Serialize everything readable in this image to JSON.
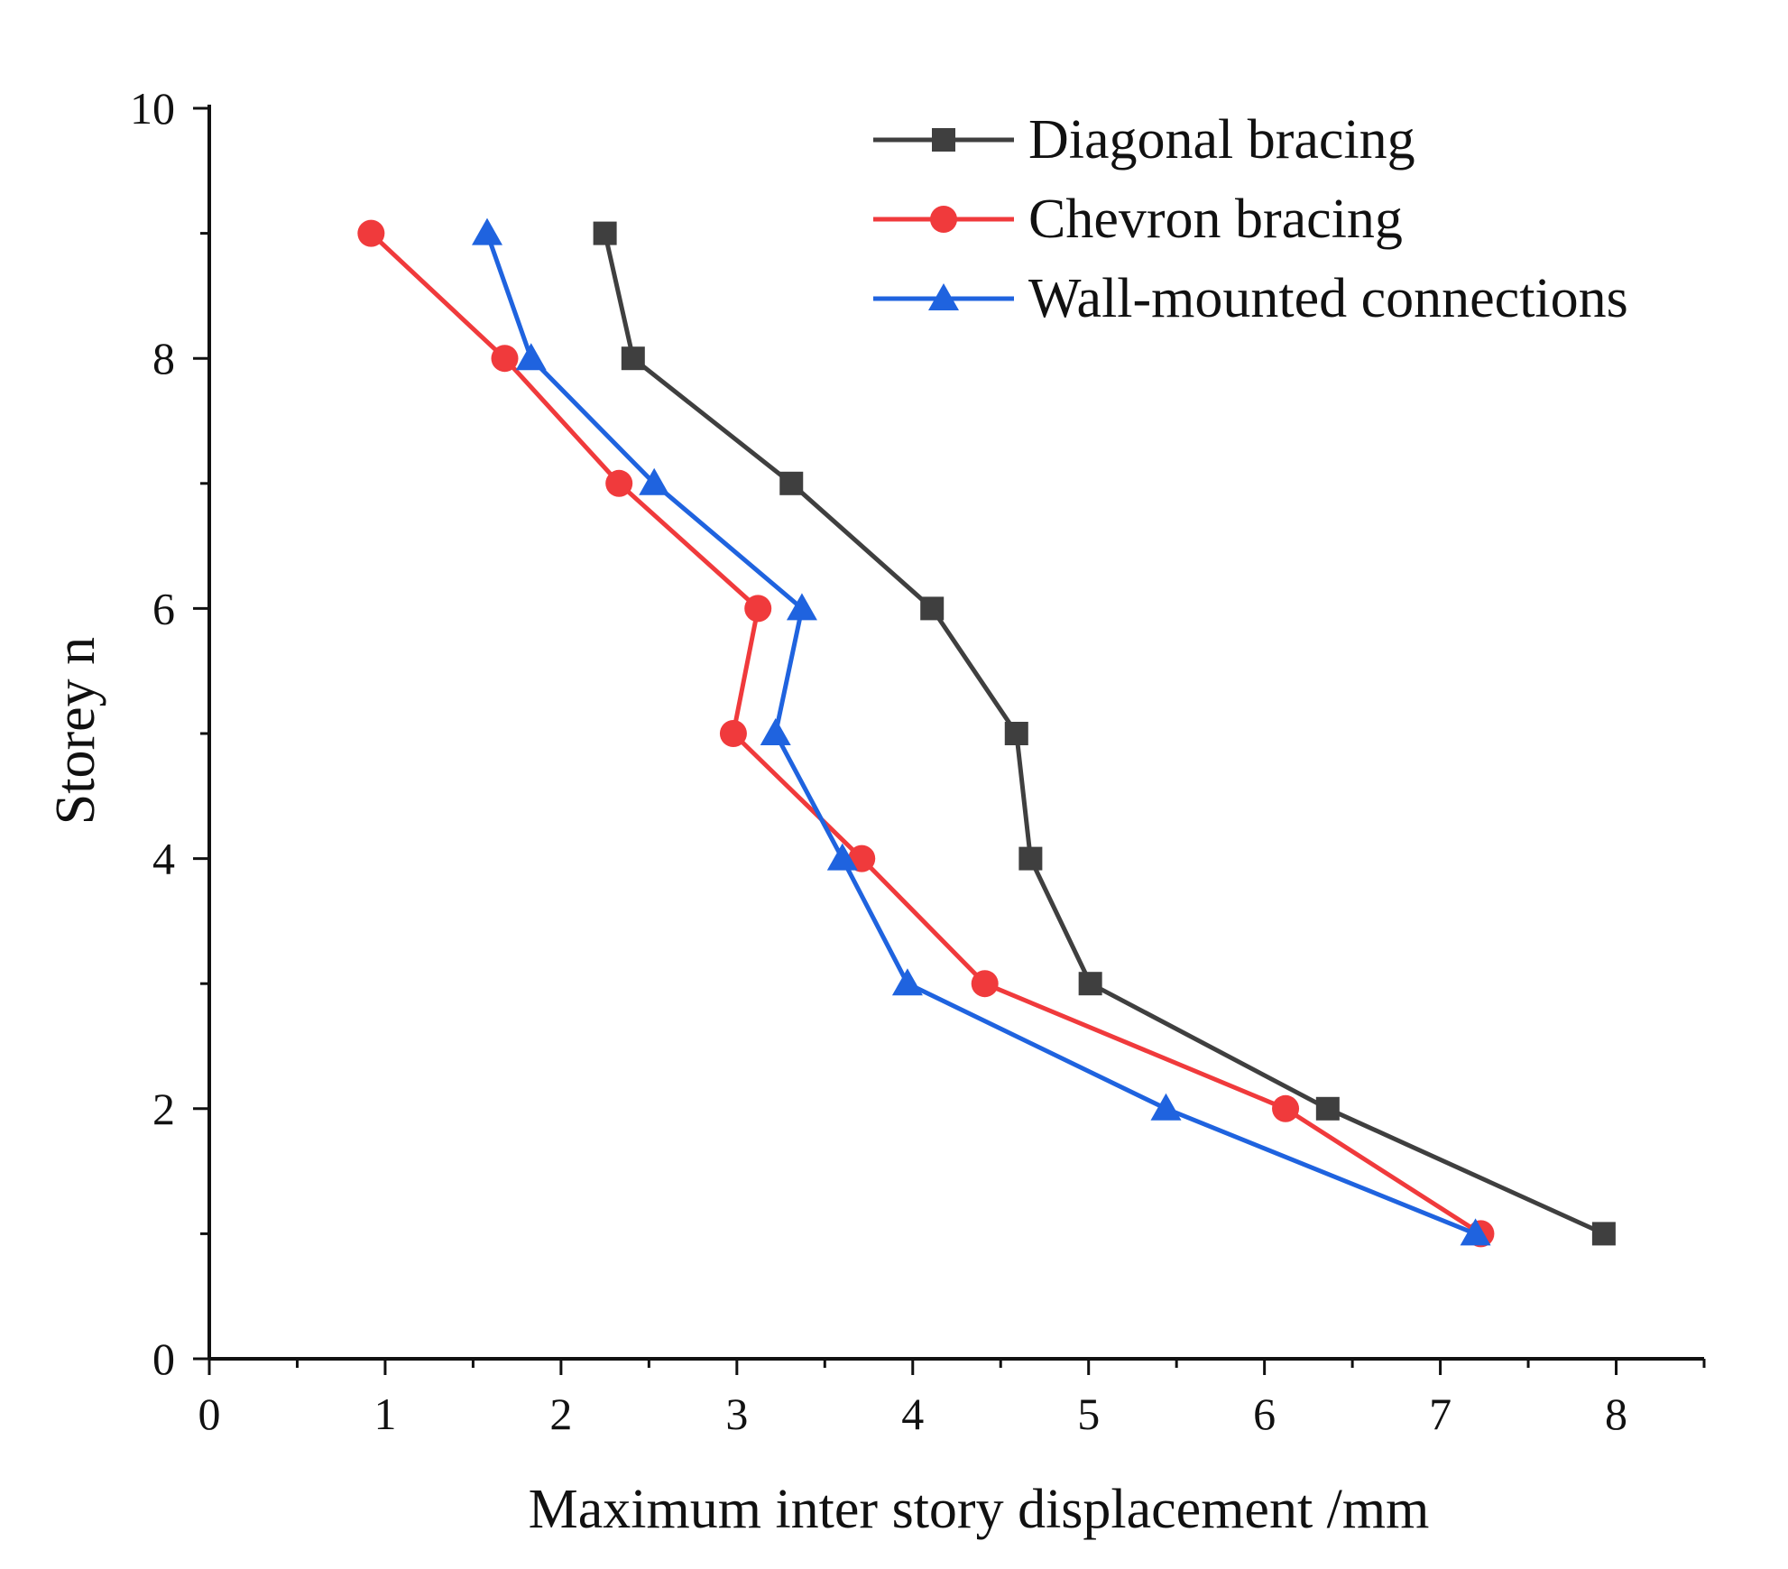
{
  "chart_data": {
    "type": "line",
    "title": "",
    "xlabel": "Maximum inter story displacement /mm",
    "ylabel": "Storey n",
    "xlim": [
      0,
      8.5
    ],
    "ylim": [
      0,
      10
    ],
    "xticks": [
      0,
      1,
      2,
      3,
      4,
      5,
      6,
      7,
      8
    ],
    "yticks": [
      0,
      2,
      4,
      6,
      8,
      10
    ],
    "x_tick_labels": [
      "0",
      "1",
      "2",
      "3",
      "4",
      "5",
      "6",
      "7",
      "8"
    ],
    "y_tick_labels": [
      "0",
      "2",
      "4",
      "6",
      "8",
      "10"
    ],
    "grid": false,
    "legend_position": "top-right",
    "series": [
      {
        "name": "Diagonal bracing",
        "color": "#3f3f3f",
        "marker": "square",
        "points": [
          [
            7.93,
            1
          ],
          [
            6.36,
            2
          ],
          [
            5.01,
            3
          ],
          [
            4.67,
            4
          ],
          [
            4.59,
            5
          ],
          [
            4.11,
            6
          ],
          [
            3.31,
            7
          ],
          [
            2.41,
            8
          ],
          [
            2.25,
            9
          ]
        ]
      },
      {
        "name": "Chevron bracing",
        "color": "#f03a3c",
        "marker": "circle",
        "points": [
          [
            7.23,
            1
          ],
          [
            6.12,
            2
          ],
          [
            4.41,
            3
          ],
          [
            3.71,
            4
          ],
          [
            2.98,
            5
          ],
          [
            3.12,
            6
          ],
          [
            2.33,
            7
          ],
          [
            1.68,
            8
          ],
          [
            0.92,
            9
          ]
        ]
      },
      {
        "name": "Wall-mounted connections",
        "color": "#1f63df",
        "marker": "triangle",
        "points": [
          [
            7.2,
            1
          ],
          [
            5.44,
            2
          ],
          [
            3.97,
            3
          ],
          [
            3.6,
            4
          ],
          [
            3.22,
            5
          ],
          [
            3.37,
            6
          ],
          [
            2.53,
            7
          ],
          [
            1.83,
            8
          ],
          [
            1.58,
            9
          ]
        ]
      }
    ]
  }
}
